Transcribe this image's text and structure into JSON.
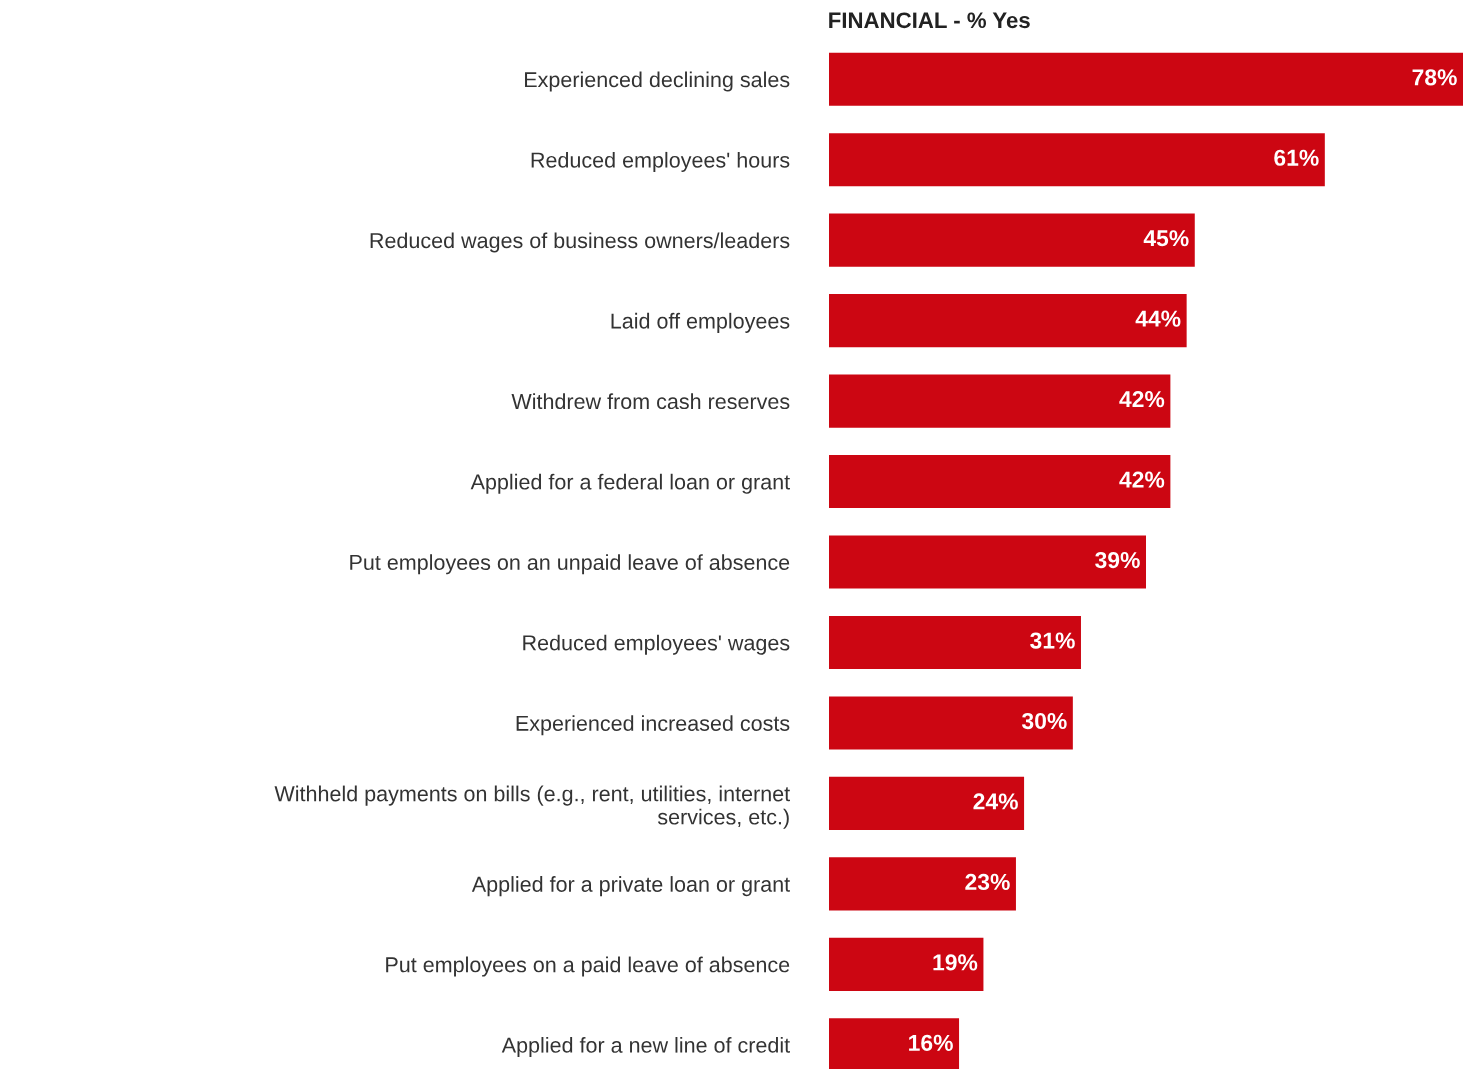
{
  "chart_data": {
    "type": "bar",
    "orientation": "horizontal",
    "title": "FINANCIAL - % Yes",
    "categories": [
      "Experienced declining sales",
      "Reduced employees' hours",
      "Reduced wages of business owners/leaders",
      "Laid off employees",
      "Withdrew from cash reserves",
      "Applied for a federal loan or grant",
      "Put employees on an unpaid leave of absence",
      "Reduced employees' wages",
      "Experienced increased costs",
      "Withheld payments on bills (e.g., rent, utilities, internet\nservices, etc.)",
      "Applied for a private loan or grant",
      "Put employees on a paid leave of absence",
      "Applied for a new line of credit"
    ],
    "values": [
      78,
      61,
      45,
      44,
      42,
      42,
      39,
      31,
      30,
      24,
      23,
      19,
      16
    ],
    "value_labels": [
      "78%",
      "61%",
      "45%",
      "44%",
      "42%",
      "42%",
      "39%",
      "31%",
      "30%",
      "24%",
      "23%",
      "19%",
      "16%"
    ],
    "color": "#cc0612",
    "xlim": [
      0,
      78
    ],
    "grid": false,
    "legend": false
  }
}
